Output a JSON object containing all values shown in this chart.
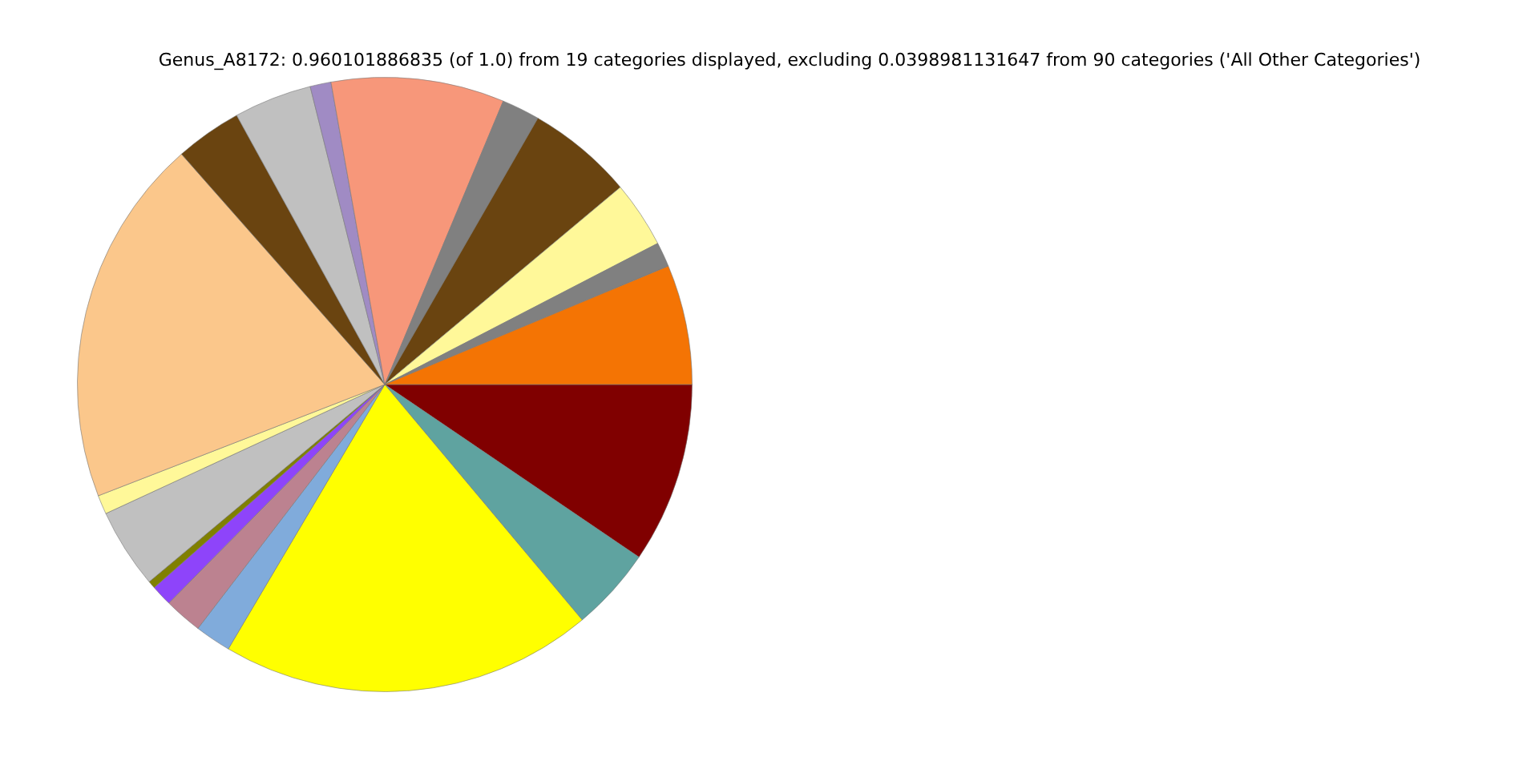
{
  "chart_data": {
    "type": "pie",
    "title": "Genus_A8172: 0.960101886835 (of 1.0) from 19 categories displayed, excluding 0.0398981131647 from 90 categories ('All Other Categories')",
    "categories": [
      null,
      null,
      null,
      null,
      null,
      null,
      null,
      null,
      null,
      null,
      null,
      null,
      null,
      null,
      null,
      null,
      null,
      null,
      null
    ],
    "values": [
      9.5,
      4.4,
      19.6,
      1.9,
      2.0,
      1.1,
      0.4,
      4.2,
      1.0,
      19.4,
      3.5,
      4.1,
      1.1,
      9.1,
      2.0,
      5.6,
      3.5,
      1.3,
      6.3
    ],
    "colors": [
      "#800000",
      "#5fa3a0",
      "#ffff00",
      "#80abdb",
      "#bc8290",
      "#8e44fa",
      "#808000",
      "#c0c0c0",
      "#fff899",
      "#fbc78b",
      "#6a4410",
      "#c0c0c0",
      "#a08bc4",
      "#f7977a",
      "#808080",
      "#6a4410",
      "#fff899",
      "#808080",
      "#f47404"
    ]
  }
}
